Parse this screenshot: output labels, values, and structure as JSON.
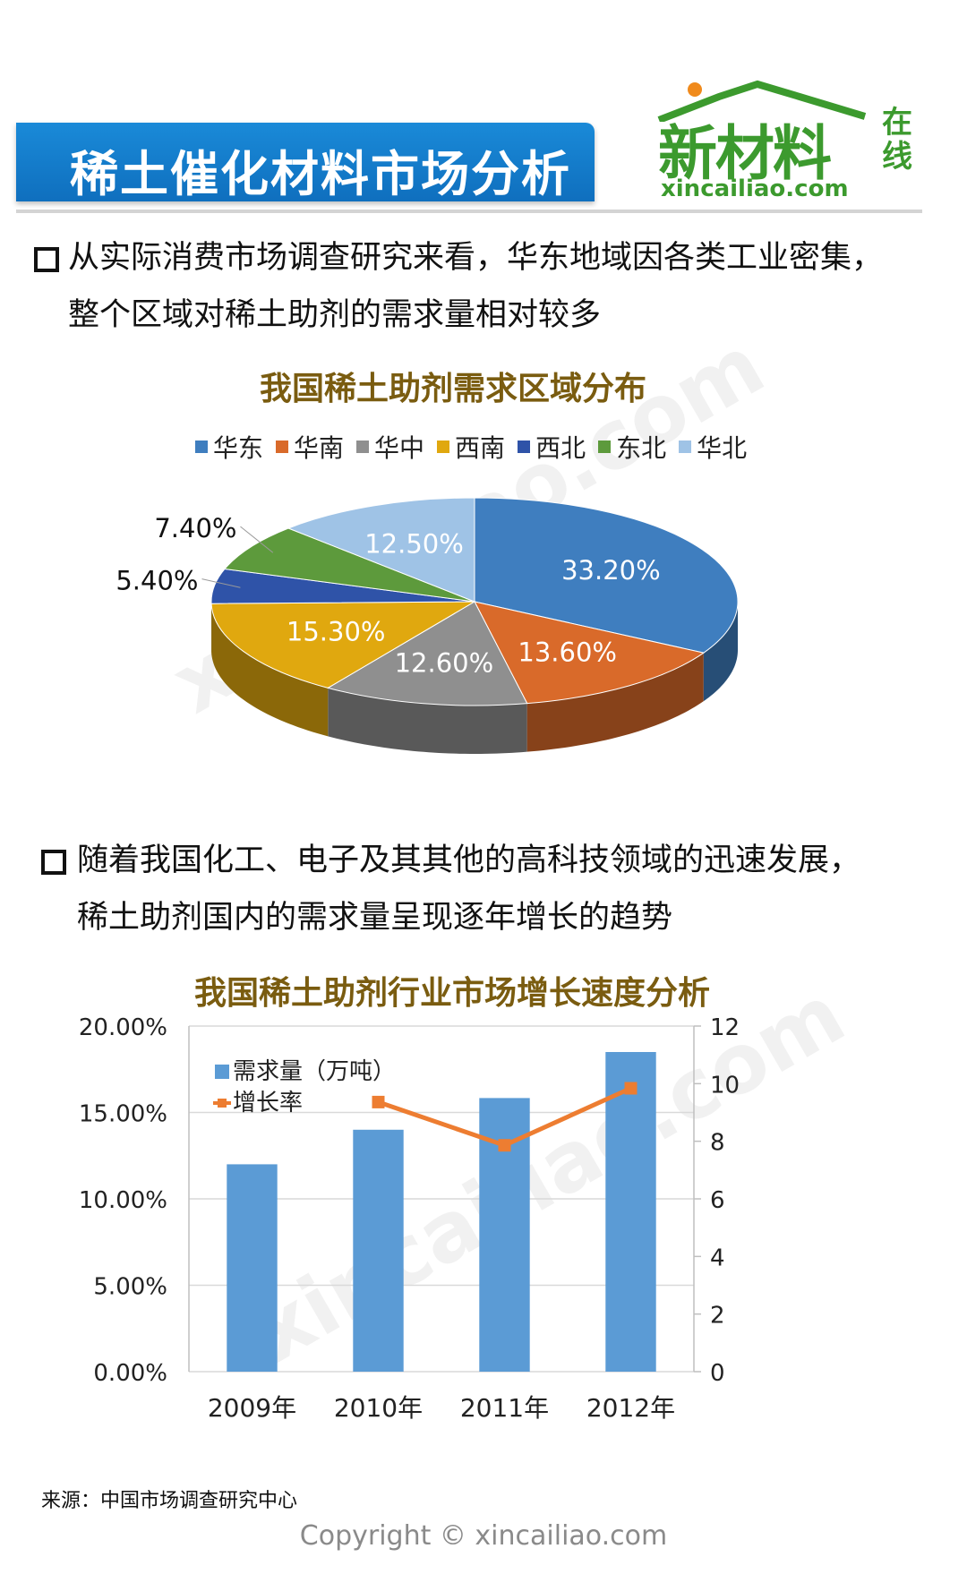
{
  "header": {
    "title": "稀土催化材料市场分析",
    "logo": {
      "name": "新材料",
      "tag_line1": "在",
      "tag_line2": "线",
      "url": "xincailiao.com"
    }
  },
  "section1": {
    "text_line1": "从实际消费市场调查研究来看，华东地域因各类工业密集，",
    "text_line2": "整个区域对稀土助剂的需求量相对较多"
  },
  "section2": {
    "text_line1": "随着我国化工、电子及其其他的高科技领域的迅速发展，",
    "text_line2": "稀土助剂国内的需求量呈现逐年增长的趋势"
  },
  "watermark_text": "xincailiao.com",
  "source_note": "来源：中国市场调查研究中心",
  "copyright": "Copyright © xincailiao.com",
  "colors": {
    "banner": "#1479c8",
    "logo_green": "#3c9a2e",
    "chart_title": "#7a5c10",
    "bar": "#5b9bd5",
    "line": "#ed7d31"
  },
  "chart_data": [
    {
      "type": "pie",
      "title": "我国稀土助剂需求区域分布",
      "legend_position": "top",
      "slices": [
        {
          "label": "华东",
          "value": 33.2,
          "display": "33.20%",
          "color": "#3f7ebf"
        },
        {
          "label": "华南",
          "value": 13.6,
          "display": "13.60%",
          "color": "#d96a2a"
        },
        {
          "label": "华中",
          "value": 12.6,
          "display": "12.60%",
          "color": "#8f8f8f"
        },
        {
          "label": "西南",
          "value": 15.3,
          "display": "15.30%",
          "color": "#e0a80f"
        },
        {
          "label": "西北",
          "value": 5.4,
          "display": "5.40%",
          "color": "#2f53a8"
        },
        {
          "label": "东北",
          "value": 7.4,
          "display": "7.40%",
          "color": "#5d9a3c"
        },
        {
          "label": "华北",
          "value": 12.5,
          "display": "12.50%",
          "color": "#9fc3e6"
        }
      ]
    },
    {
      "type": "bar",
      "title": "我国稀土助剂行业市场增长速度分析",
      "categories": [
        "2009年",
        "2010年",
        "2011年",
        "2012年"
      ],
      "series": [
        {
          "name": "需求量（万吨）",
          "type": "bar",
          "axis": "right",
          "values": [
            7.2,
            8.4,
            9.5,
            11.1
          ]
        },
        {
          "name": "增长率",
          "type": "line",
          "axis": "left",
          "values": [
            null,
            15.6,
            13.1,
            16.4
          ]
        }
      ],
      "left_axis": {
        "ylim": [
          0,
          20
        ],
        "ticks": [
          "0.00%",
          "5.00%",
          "10.00%",
          "15.00%",
          "20.00%"
        ]
      },
      "right_axis": {
        "ylim": [
          0,
          12
        ],
        "ticks": [
          "0",
          "2",
          "4",
          "6",
          "8",
          "10",
          "12"
        ]
      },
      "legend_position": "top-left",
      "grid": true
    }
  ]
}
